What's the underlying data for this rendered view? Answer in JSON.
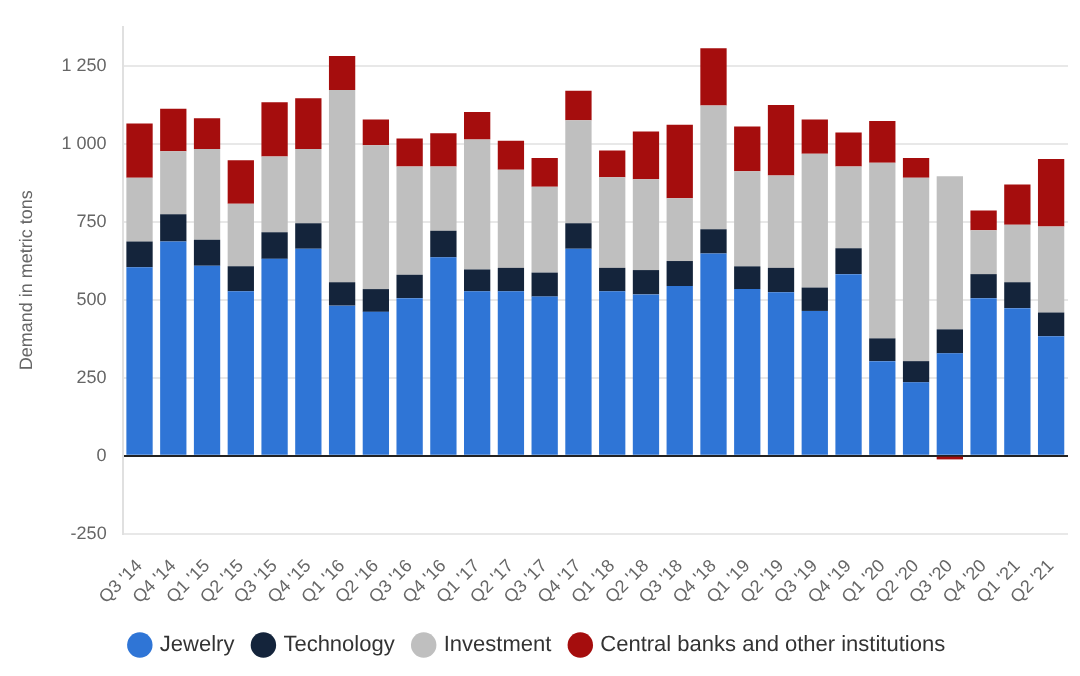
{
  "chart_data": {
    "type": "bar",
    "stacked": true,
    "ylabel": "Demand in metric tons",
    "categories": [
      "Q3 '14",
      "Q4 '14",
      "Q1 '15",
      "Q2 '15",
      "Q3 '15",
      "Q4 '15",
      "Q1 '16",
      "Q2 '16",
      "Q3 '16",
      "Q4 '16",
      "Q1 '17",
      "Q2 '17",
      "Q3 '17",
      "Q4 '17",
      "Q1 '18",
      "Q2 '18",
      "Q3 '18",
      "Q4 '18",
      "Q1 '19",
      "Q2 '19",
      "Q3 '19",
      "Q4 '19",
      "Q1 '20",
      "Q2 '20",
      "Q3 '20",
      "Q4 '20",
      "Q1 '21",
      "Q2 '21"
    ],
    "series": [
      {
        "name": "Jewelry",
        "color": "#2f75d6",
        "values": [
          604,
          687,
          609,
          527,
          631,
          663,
          481,
          461,
          505,
          636,
          527,
          527,
          510,
          663,
          527,
          517,
          544,
          648,
          534,
          524,
          464,
          582,
          303,
          235,
          328,
          505,
          473,
          383
        ]
      },
      {
        "name": "Technology",
        "color": "#14243b",
        "values": [
          83,
          87,
          83,
          80,
          85,
          82,
          75,
          73,
          75,
          85,
          70,
          75,
          77,
          82,
          75,
          78,
          80,
          78,
          73,
          78,
          75,
          83,
          73,
          68,
          77,
          77,
          83,
          76
        ]
      },
      {
        "name": "Investment",
        "color": "#bfbfbf",
        "values": [
          204,
          202,
          291,
          201,
          243,
          238,
          616,
          461,
          347,
          206,
          417,
          315,
          275,
          330,
          291,
          291,
          201,
          397,
          305,
          296,
          429,
          262,
          563,
          588,
          491,
          141,
          184,
          276
        ]
      },
      {
        "name": "Central banks and other institutions",
        "color": "#a50d0d",
        "values": [
          174,
          136,
          99,
          139,
          174,
          163,
          109,
          83,
          90,
          107,
          88,
          93,
          92,
          95,
          85,
          153,
          236,
          183,
          143,
          226,
          110,
          109,
          134,
          63,
          -12,
          63,
          129,
          216
        ]
      }
    ],
    "ylim": [
      -250,
      1375
    ],
    "yticks": [
      -250,
      0,
      250,
      500,
      750,
      {
        "value": 1000,
        "label": "1 000"
      },
      {
        "value": 1250,
        "label": "1 250"
      }
    ],
    "grid": "y",
    "legend": "bottom"
  }
}
